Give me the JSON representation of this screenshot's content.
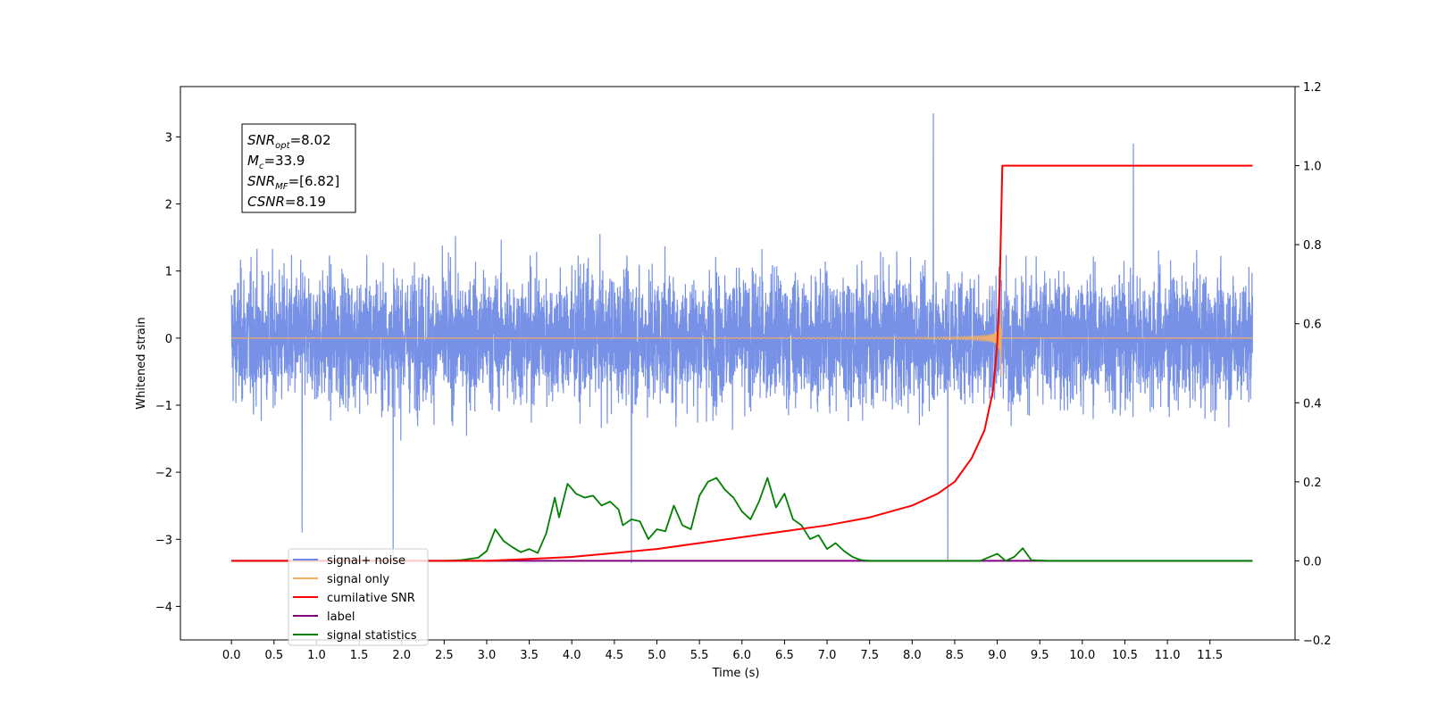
{
  "chart_data": {
    "type": "line",
    "xlabel": "Time (s)",
    "ylabel": "Whitened strain",
    "xlim": [
      -0.6,
      12.5
    ],
    "ylim": [
      -4.5,
      3.75
    ],
    "y2lim": [
      -0.2,
      1.2
    ],
    "x_ticks": [
      "0.0",
      "0.5",
      "1.0",
      "1.5",
      "2.0",
      "2.5",
      "3.0",
      "3.5",
      "4.0",
      "4.5",
      "5.0",
      "5.5",
      "6.0",
      "6.5",
      "7.0",
      "7.5",
      "8.0",
      "8.5",
      "9.0",
      "9.5",
      "10.0",
      "10.5",
      "11.0",
      "11.5"
    ],
    "y_ticks": [
      "3",
      "2",
      "1",
      "0",
      "−1",
      "−2",
      "−3",
      "−4"
    ],
    "y2_ticks": [
      "1.2",
      "1.0",
      "0.8",
      "0.6",
      "0.4",
      "0.2",
      "0.0",
      "−0.2"
    ],
    "annotation": [
      {
        "base": "SNR",
        "sub": "opt",
        "value": "=8.02"
      },
      {
        "base": "M",
        "sub": "c",
        "value": "=33.9"
      },
      {
        "base": "SNR",
        "sub": "MF",
        "value": "=[6.82]"
      },
      {
        "base": "CSNR",
        "sub": "",
        "value": "=8.19"
      }
    ],
    "legend_placement": "lower-left",
    "series": [
      {
        "name": "signal+ noise",
        "color": "#6b88e4",
        "axis": "left",
        "time_range": [
          0.0,
          12.0
        ],
        "typical_amplitude": 1.5,
        "spikes": [
          [
            0.83,
            -2.9
          ],
          [
            1.9,
            -3.3
          ],
          [
            4.7,
            -3.35
          ],
          [
            8.25,
            3.35
          ],
          [
            8.42,
            -3.3
          ],
          [
            10.6,
            2.9
          ]
        ]
      },
      {
        "name": "signal only",
        "color": "#f5b060",
        "axis": "left",
        "chirp_end": 9.05,
        "peak_amplitude": 1.5
      },
      {
        "name": "cumilative SNR",
        "color": "#ff0000",
        "axis": "right",
        "x": [
          0.0,
          3.0,
          3.5,
          4.0,
          4.5,
          5.0,
          5.5,
          6.0,
          6.5,
          7.0,
          7.5,
          8.0,
          8.3,
          8.5,
          8.7,
          8.85,
          8.95,
          9.0,
          9.03,
          9.05,
          9.06,
          12.0
        ],
        "y": [
          0.0,
          0.0,
          0.005,
          0.01,
          0.02,
          0.03,
          0.045,
          0.06,
          0.075,
          0.09,
          0.11,
          0.14,
          0.17,
          0.2,
          0.26,
          0.33,
          0.43,
          0.55,
          0.7,
          0.9,
          1.0,
          1.0
        ]
      },
      {
        "name": "label",
        "color": "#800080",
        "axis": "right",
        "x": [
          0.0,
          9.06,
          12.0
        ],
        "y": [
          0.0,
          0.0,
          0.0
        ]
      },
      {
        "name": "signal statistics",
        "color": "#008000",
        "axis": "right",
        "x": [
          0.0,
          2.5,
          2.7,
          2.9,
          3.0,
          3.1,
          3.2,
          3.3,
          3.4,
          3.5,
          3.6,
          3.7,
          3.8,
          3.85,
          3.95,
          4.05,
          4.15,
          4.25,
          4.35,
          4.45,
          4.55,
          4.6,
          4.7,
          4.8,
          4.9,
          5.0,
          5.1,
          5.2,
          5.3,
          5.4,
          5.5,
          5.6,
          5.7,
          5.8,
          5.9,
          6.0,
          6.1,
          6.2,
          6.3,
          6.4,
          6.5,
          6.6,
          6.7,
          6.8,
          6.9,
          7.0,
          7.1,
          7.2,
          7.3,
          7.4,
          7.5,
          7.6,
          8.0,
          8.8,
          9.0,
          9.1,
          9.2,
          9.3,
          9.4,
          9.6,
          10.0,
          10.5,
          12.0
        ],
        "y": [
          0.0,
          0.0,
          0.002,
          0.008,
          0.025,
          0.08,
          0.05,
          0.035,
          0.022,
          0.03,
          0.02,
          0.07,
          0.16,
          0.11,
          0.195,
          0.17,
          0.16,
          0.165,
          0.14,
          0.15,
          0.13,
          0.09,
          0.105,
          0.1,
          0.055,
          0.08,
          0.075,
          0.14,
          0.09,
          0.08,
          0.165,
          0.2,
          0.21,
          0.18,
          0.16,
          0.125,
          0.105,
          0.15,
          0.21,
          0.135,
          0.17,
          0.105,
          0.09,
          0.055,
          0.065,
          0.03,
          0.045,
          0.025,
          0.01,
          0.002,
          0.0,
          0.0,
          0.0,
          0.0,
          0.018,
          0.0,
          0.01,
          0.032,
          0.002,
          0.0,
          0.0,
          0.0,
          0.0
        ]
      }
    ]
  }
}
